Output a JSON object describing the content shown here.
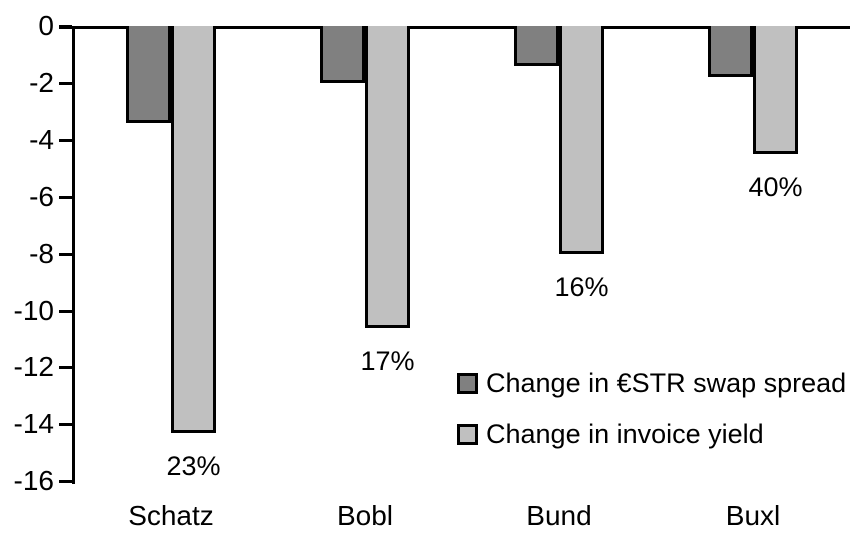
{
  "chart_data": {
    "type": "bar",
    "title": "",
    "categories": [
      "Schatz",
      "Bobl",
      "Bund",
      "Buxl"
    ],
    "series": [
      {
        "name": "Change in €STR swap spread",
        "color": "#808080",
        "values": [
          -3.3,
          -1.9,
          -1.3,
          -1.7
        ]
      },
      {
        "name": "Change in invoice yield",
        "color": "#c0c0c0",
        "values": [
          -14.2,
          -10.5,
          -7.9,
          -4.4
        ]
      }
    ],
    "bar_labels": {
      "series": "Change in invoice yield",
      "values": [
        "23%",
        "17%",
        "16%",
        "40%"
      ]
    },
    "y_ticks": [
      0,
      -2,
      -4,
      -6,
      -8,
      -10,
      -12,
      -14,
      -16
    ],
    "ylim": [
      -16,
      0
    ],
    "xlabel": "",
    "ylabel": "",
    "grid": false,
    "legend_position": "inside-right",
    "axis_color": "#000000",
    "background": "#ffffff"
  }
}
